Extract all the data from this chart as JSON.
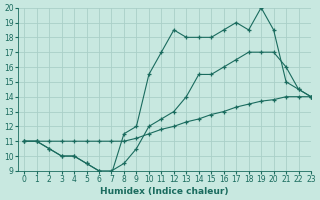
{
  "line_bottom_x": [
    0,
    1,
    2,
    3,
    4,
    5,
    6,
    7,
    8,
    9,
    10,
    11,
    12,
    13,
    14,
    15,
    16,
    17,
    18,
    19,
    20,
    21,
    22,
    23
  ],
  "line_bottom_y": [
    11,
    11,
    11,
    11,
    11,
    11,
    11,
    11,
    11,
    11.2,
    11.5,
    11.8,
    12,
    12.3,
    12.5,
    12.8,
    13,
    13.3,
    13.5,
    13.7,
    13.8,
    14,
    14,
    14
  ],
  "line_mid_x": [
    0,
    1,
    2,
    3,
    4,
    5,
    6,
    7,
    8,
    9,
    10,
    11,
    12,
    13,
    14,
    15,
    16,
    17,
    18,
    19,
    20,
    21,
    22,
    23
  ],
  "line_mid_y": [
    11,
    11,
    10.5,
    10,
    10,
    9.5,
    9,
    9,
    9.5,
    10.5,
    12,
    12.5,
    13,
    14,
    15.5,
    15.5,
    16,
    16.5,
    17,
    17,
    17,
    16,
    14.5,
    14
  ],
  "line_top_x": [
    0,
    1,
    2,
    3,
    4,
    5,
    6,
    7,
    8,
    9,
    10,
    11,
    12,
    13,
    14,
    15,
    16,
    17,
    18,
    19,
    20,
    21,
    22,
    23
  ],
  "line_top_y": [
    11,
    11,
    10.5,
    10,
    10,
    9.5,
    9,
    8.8,
    11.5,
    12,
    15.5,
    17,
    18.5,
    18,
    18,
    18,
    18.5,
    19,
    18.5,
    20,
    18.5,
    15,
    14.5,
    14
  ],
  "color": "#1a6b5e",
  "bg_color": "#c8e8e0",
  "grid_color": "#aacfc8",
  "xlabel": "Humidex (Indice chaleur)",
  "xlim": [
    -0.5,
    23
  ],
  "ylim": [
    9,
    20
  ],
  "xticks": [
    0,
    1,
    2,
    3,
    4,
    5,
    6,
    7,
    8,
    9,
    10,
    11,
    12,
    13,
    14,
    15,
    16,
    17,
    18,
    19,
    20,
    21,
    22,
    23
  ],
  "yticks": [
    9,
    10,
    11,
    12,
    13,
    14,
    15,
    16,
    17,
    18,
    19,
    20
  ],
  "xlabel_fontsize": 6.5,
  "tick_fontsize": 5.5
}
